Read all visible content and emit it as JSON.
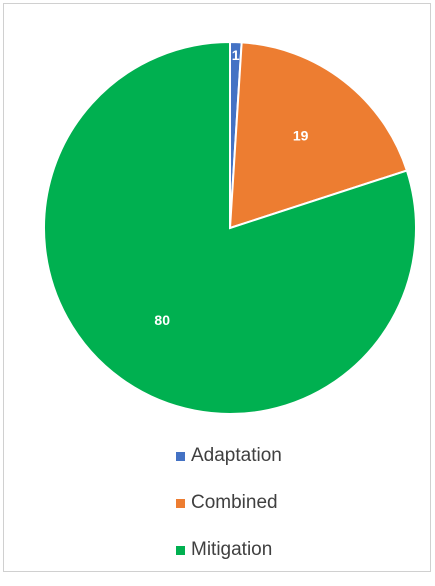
{
  "chart_data": {
    "type": "pie",
    "categories": [
      "Adaptation",
      "Combined",
      "Mitigation"
    ],
    "values": [
      1,
      19,
      80
    ],
    "data_labels": [
      "1",
      "19",
      "80"
    ],
    "colors": [
      "#4472c4",
      "#ed7d31",
      "#00b050"
    ],
    "legend_position": "bottom",
    "start_angle": "12 o'clock, clockwise"
  }
}
